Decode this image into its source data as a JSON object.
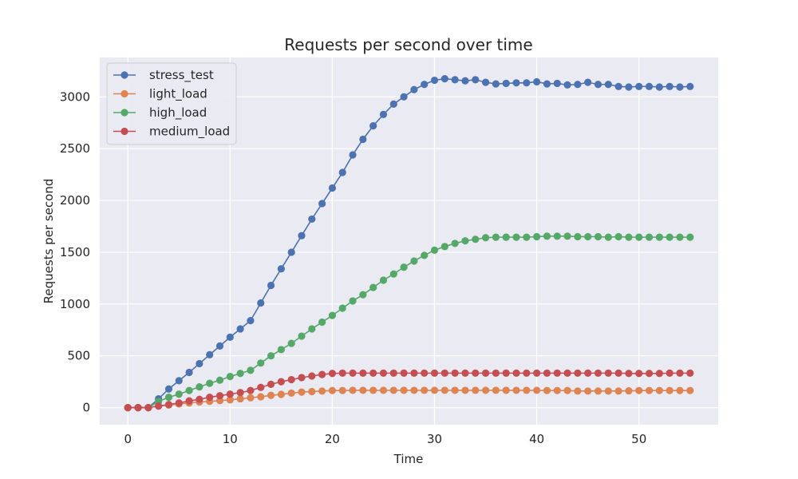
{
  "chart_data": {
    "type": "line",
    "title": "Requests per second over time",
    "xlabel": "Time",
    "ylabel": "Requests per second",
    "xlim": [
      -2.75,
      57.75
    ],
    "ylim": [
      -165,
      3380
    ],
    "xticks": [
      0,
      10,
      20,
      30,
      40,
      50
    ],
    "yticks": [
      0,
      500,
      1000,
      1500,
      2000,
      2500,
      3000
    ],
    "grid": true,
    "legend_position": "top-left",
    "x": [
      0,
      1,
      2,
      3,
      4,
      5,
      6,
      7,
      8,
      9,
      10,
      11,
      12,
      13,
      14,
      15,
      16,
      17,
      18,
      19,
      20,
      21,
      22,
      23,
      24,
      25,
      26,
      27,
      28,
      29,
      30,
      31,
      32,
      33,
      34,
      35,
      36,
      37,
      38,
      39,
      40,
      41,
      42,
      43,
      44,
      45,
      46,
      47,
      48,
      49,
      50,
      51,
      52,
      53,
      54,
      55
    ],
    "series": [
      {
        "name": "stress_test",
        "color": "#4c72b0",
        "values": [
          0,
          0,
          0,
          85,
          180,
          260,
          340,
          425,
          510,
          595,
          680,
          760,
          840,
          1010,
          1180,
          1340,
          1500,
          1660,
          1820,
          1970,
          2120,
          2270,
          2440,
          2590,
          2720,
          2830,
          2930,
          3000,
          3070,
          3120,
          3160,
          3175,
          3165,
          3155,
          3165,
          3140,
          3125,
          3130,
          3135,
          3135,
          3145,
          3125,
          3130,
          3115,
          3120,
          3140,
          3120,
          3120,
          3100,
          3095,
          3100,
          3100,
          3095,
          3100,
          3095,
          3100
        ]
      },
      {
        "name": "light_load",
        "color": "#dd8452",
        "values": [
          0,
          0,
          0,
          15,
          25,
          35,
          45,
          55,
          60,
          68,
          75,
          85,
          95,
          105,
          118,
          128,
          140,
          150,
          155,
          160,
          165,
          165,
          167,
          167,
          167,
          167,
          167,
          167,
          167,
          167,
          167,
          167,
          167,
          167,
          167,
          167,
          167,
          167,
          167,
          167,
          167,
          165,
          165,
          165,
          160,
          160,
          160,
          160,
          160,
          162,
          165,
          165,
          165,
          165,
          165,
          165
        ]
      },
      {
        "name": "high_load",
        "color": "#55a868",
        "values": [
          0,
          0,
          0,
          60,
          100,
          130,
          165,
          200,
          235,
          265,
          300,
          330,
          360,
          430,
          500,
          560,
          620,
          690,
          760,
          825,
          890,
          960,
          1030,
          1090,
          1160,
          1230,
          1290,
          1355,
          1415,
          1470,
          1520,
          1555,
          1585,
          1610,
          1625,
          1640,
          1645,
          1645,
          1645,
          1645,
          1650,
          1655,
          1655,
          1655,
          1650,
          1650,
          1650,
          1645,
          1650,
          1645,
          1645,
          1645,
          1645,
          1645,
          1645,
          1645
        ]
      },
      {
        "name": "medium_load",
        "color": "#c44e52",
        "values": [
          0,
          0,
          0,
          15,
          30,
          45,
          65,
          80,
          100,
          115,
          130,
          145,
          165,
          195,
          225,
          250,
          270,
          290,
          305,
          320,
          330,
          333,
          333,
          333,
          333,
          333,
          333,
          333,
          333,
          333,
          333,
          333,
          333,
          333,
          333,
          333,
          333,
          333,
          333,
          333,
          333,
          333,
          333,
          333,
          333,
          333,
          333,
          333,
          333,
          330,
          330,
          330,
          330,
          333,
          333,
          333
        ]
      }
    ]
  }
}
